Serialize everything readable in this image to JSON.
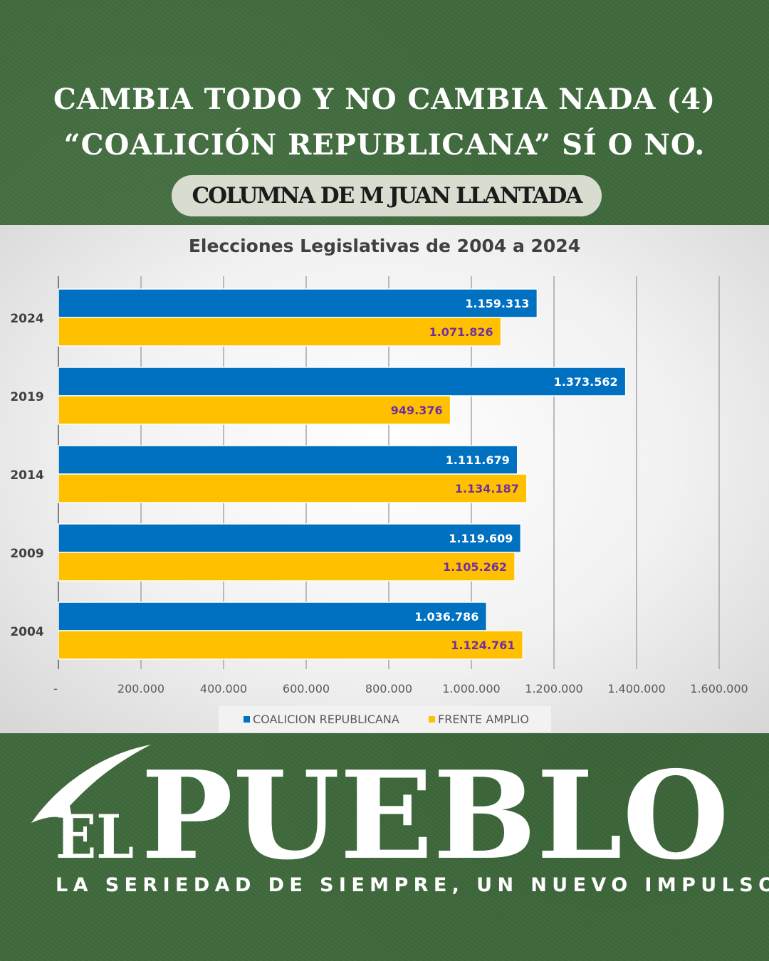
{
  "header": {
    "line1": "CAMBIA TODO Y NO CAMBIA NADA (4)",
    "line2": "“COALICIÓN REPUBLICANA” SÍ O NO.",
    "byline": "COLUMNA DE M JUAN LLANTADA"
  },
  "chart_data": {
    "type": "bar",
    "orientation": "horizontal",
    "title": "Elecciones Legislativas de 2004 a 2024",
    "categories": [
      "2024",
      "2019",
      "2014",
      "2009",
      "2004"
    ],
    "series": [
      {
        "name": "COALICION REPUBLICANA",
        "color": "#0070c0",
        "label_color": "#ffffff",
        "values": [
          1159313,
          1373562,
          1111679,
          1119609,
          1036786
        ],
        "labels": [
          "1.159.313",
          "1.373.562",
          "1.111.679",
          "1.119.609",
          "1.036.786"
        ]
      },
      {
        "name": "FRENTE AMPLIO",
        "color": "#ffc000",
        "label_color": "#7030a0",
        "values": [
          1071826,
          949376,
          1134187,
          1105262,
          1124761
        ],
        "labels": [
          "1.071.826",
          "949.376",
          "1.134.187",
          "1.105.262",
          "1.124.761"
        ]
      }
    ],
    "xlim": [
      0,
      1600000
    ],
    "xticks": [
      0,
      200000,
      400000,
      600000,
      800000,
      1000000,
      1200000,
      1400000,
      1600000
    ],
    "xtick_labels": [
      "-",
      "200.000",
      "400.000",
      "600.000",
      "800.000",
      "1.000.000",
      "1.200.000",
      "1.400.000",
      "1.600.000"
    ],
    "grid": true,
    "legend_position": "bottom"
  },
  "brand": {
    "logo_small": "EL",
    "logo_big": "PUEBLO",
    "tagline": "LA SERIEDAD DE SIEMPRE, UN NUEVO IMPULSO",
    "logo_color": "#ffffff"
  }
}
